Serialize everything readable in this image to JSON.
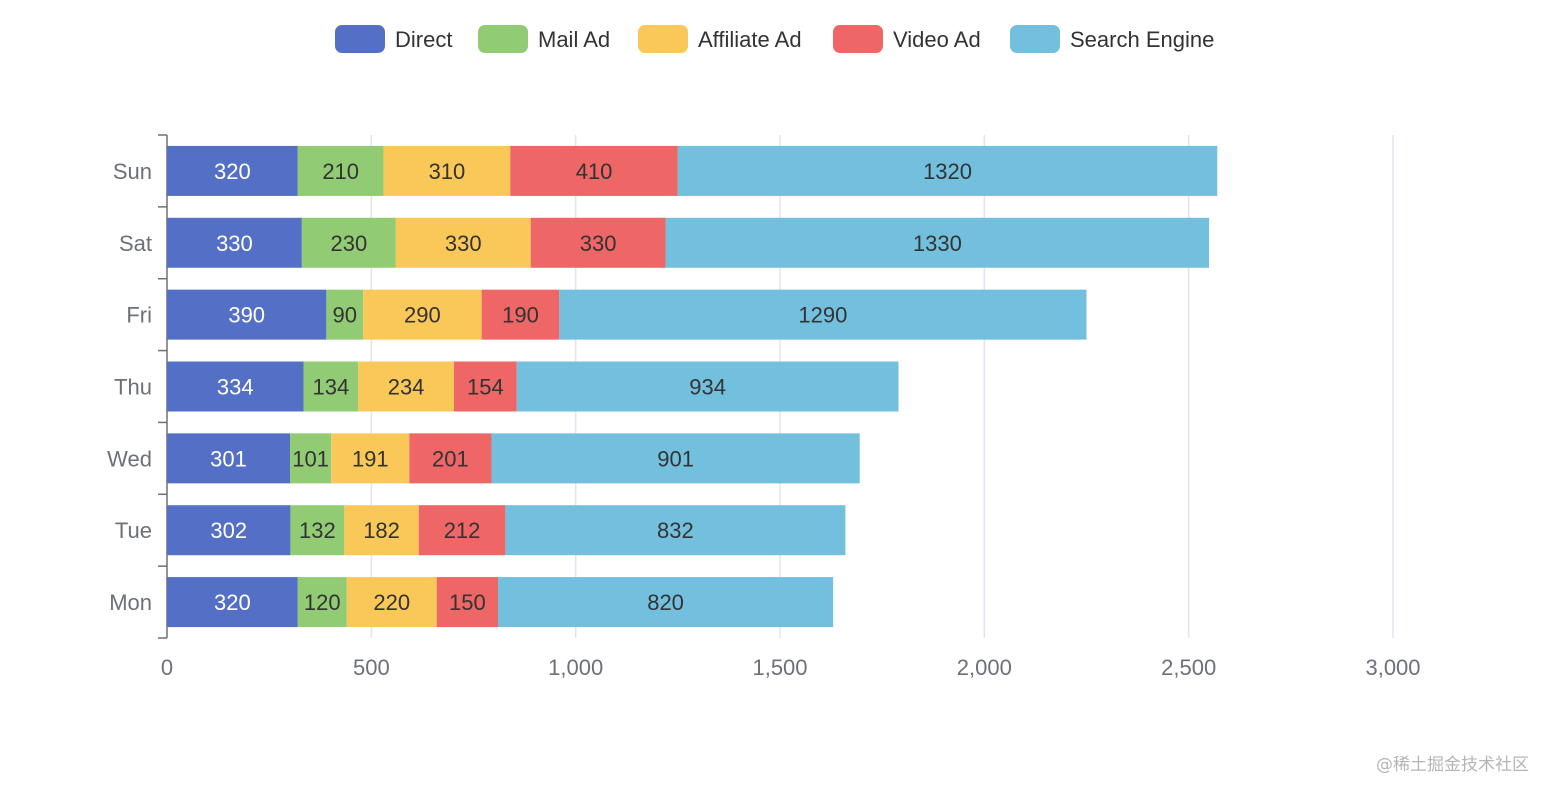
{
  "chart_data": {
    "type": "bar",
    "orientation": "horizontal",
    "stacked": true,
    "categories": [
      "Mon",
      "Tue",
      "Wed",
      "Thu",
      "Fri",
      "Sat",
      "Sun"
    ],
    "series": [
      {
        "name": "Direct",
        "color": "#5470c6",
        "values": [
          320,
          302,
          301,
          334,
          390,
          330,
          320
        ]
      },
      {
        "name": "Mail Ad",
        "color": "#91cc75",
        "values": [
          120,
          132,
          101,
          134,
          90,
          230,
          210
        ]
      },
      {
        "name": "Affiliate Ad",
        "color": "#fac858",
        "values": [
          220,
          182,
          191,
          234,
          290,
          330,
          310
        ]
      },
      {
        "name": "Video Ad",
        "color": "#ee6666",
        "values": [
          150,
          212,
          201,
          154,
          190,
          330,
          410
        ]
      },
      {
        "name": "Search Engine",
        "color": "#73c0de",
        "values": [
          820,
          832,
          901,
          934,
          1290,
          1330,
          1320
        ]
      }
    ],
    "xlim": [
      0,
      3000
    ],
    "xticks": [
      0,
      500,
      1000,
      1500,
      2000,
      2500,
      3000
    ],
    "xtick_labels": [
      "0",
      "500",
      "1,000",
      "1,500",
      "2,000",
      "2,500",
      "3,000"
    ],
    "grid": true,
    "legend_position": "top-center",
    "data_labels": true
  },
  "watermark": "@稀土掘金技术社区"
}
